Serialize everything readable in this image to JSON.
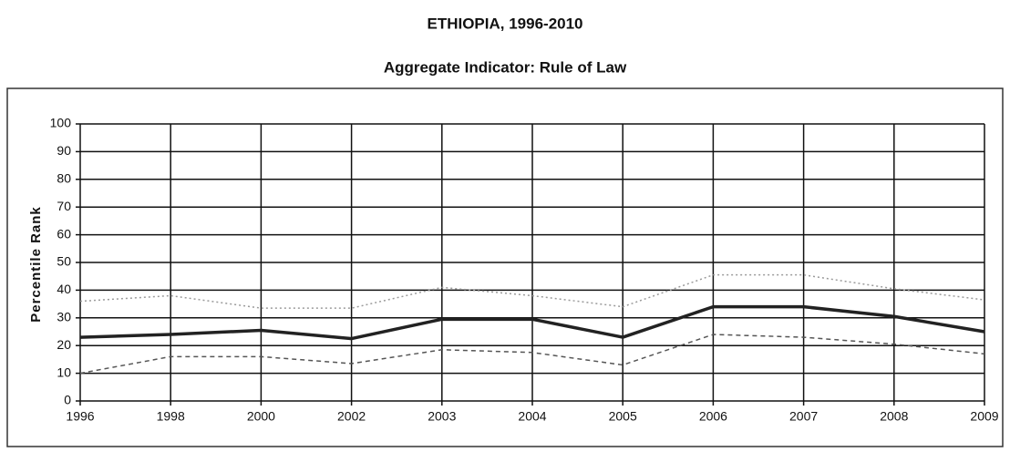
{
  "chart_data": {
    "type": "line",
    "title": "ETHIOPIA, 1996-2010",
    "subtitle": "Aggregate Indicator: Rule of Law",
    "y_label": "Percentile Rank",
    "categories": [
      "1996",
      "1998",
      "2000",
      "2002",
      "2003",
      "2004",
      "2005",
      "2006",
      "2007",
      "2008",
      "2009"
    ],
    "series": [
      {
        "color": "#222222",
        "line_style": "solid",
        "line_width": 3.5,
        "values": [
          23,
          24,
          25.5,
          22.5,
          29.5,
          29.5,
          23,
          34,
          34,
          30.5,
          25
        ]
      },
      {
        "color": "#9a9a9a",
        "line_style": "dotted",
        "line_width": 1.5,
        "values": [
          36,
          38,
          33.5,
          33.5,
          41,
          38,
          34,
          45.5,
          45.5,
          40.5,
          36.5
        ]
      },
      {
        "color": "#555555",
        "line_style": "dashed",
        "line_width": 1.5,
        "values": [
          10,
          16,
          16,
          13.5,
          18.5,
          17.5,
          13,
          24,
          23,
          20.5,
          17
        ]
      }
    ],
    "ylim": [
      0,
      100
    ],
    "yticks": [
      0,
      10,
      20,
      30,
      40,
      50,
      60,
      70,
      80,
      90,
      100
    ],
    "grid": true
  }
}
